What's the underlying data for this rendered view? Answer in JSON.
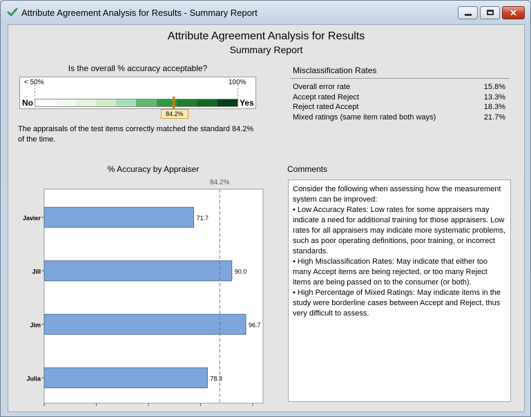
{
  "window": {
    "title": "Attribute Agreement Analysis for Results - Summary Report"
  },
  "report": {
    "title": "Attribute Agreement Analysis for Results",
    "subtitle": "Summary Report"
  },
  "accuracy_gauge": {
    "question": "Is the overall % accuracy acceptable?",
    "scale_low_label": "< 50%",
    "scale_high_label": "100%",
    "no_label": "No",
    "yes_label": "Yes",
    "value": 84.2,
    "value_label": "84.2%",
    "marker_color": "#e07b00",
    "segment_colors": [
      "#ffffff",
      "#f2f9f2",
      "#e2f4d9",
      "#cfeec0",
      "#a7e0b8",
      "#5fb86b",
      "#2f9a3d",
      "#1c7f2e",
      "#0f6822",
      "#083f14"
    ],
    "description": "The appraisals of the test items correctly matched the standard 84.2% of the time."
  },
  "misclassification": {
    "heading": "Misclassification Rates",
    "rows": [
      {
        "label": "Overall error rate",
        "value": "15.8%"
      },
      {
        "label": "Accept rated Reject",
        "value": "13.3%"
      },
      {
        "label": "Reject rated Accept",
        "value": "18.3%"
      },
      {
        "label": "Mixed ratings (same item rated both ways)",
        "value": "21.7%"
      }
    ]
  },
  "chart_data": {
    "type": "bar",
    "orientation": "horizontal",
    "title": "% Accuracy by Appraiser",
    "categories": [
      "Javier",
      "Jill",
      "Jim",
      "Julia"
    ],
    "values": [
      71.7,
      90.0,
      96.7,
      78.3
    ],
    "value_labels": [
      "71.7",
      "90.0",
      "96.7",
      "78.3"
    ],
    "xlim": [
      0,
      105
    ],
    "xticks": [
      "0",
      "25",
      "50",
      "75",
      "100"
    ],
    "reference_line": {
      "value": 84.2,
      "label": "84.2%"
    },
    "bar_color": "#7ea6dc",
    "grid": false
  },
  "comments": {
    "heading": "Comments",
    "paragraphs": [
      "Consider the following when assessing how the measurement system can be improved:",
      "•  Low Accuracy Rates: Low rates for some appraisers may indicate a need for additional training for those appraisers. Low rates for all appraisers may indicate more systematic problems, such as poor operating definitions, poor training, or incorrect standards.",
      "•  High Misclassification Rates: May indicate that either too many Accept items are being rejected, or too many Reject items are being passed on to the consumer (or both).",
      "•  High Percentage of Mixed Ratings: May indicate items in the study were borderline cases between Accept and Reject, thus very difficult to assess."
    ]
  }
}
